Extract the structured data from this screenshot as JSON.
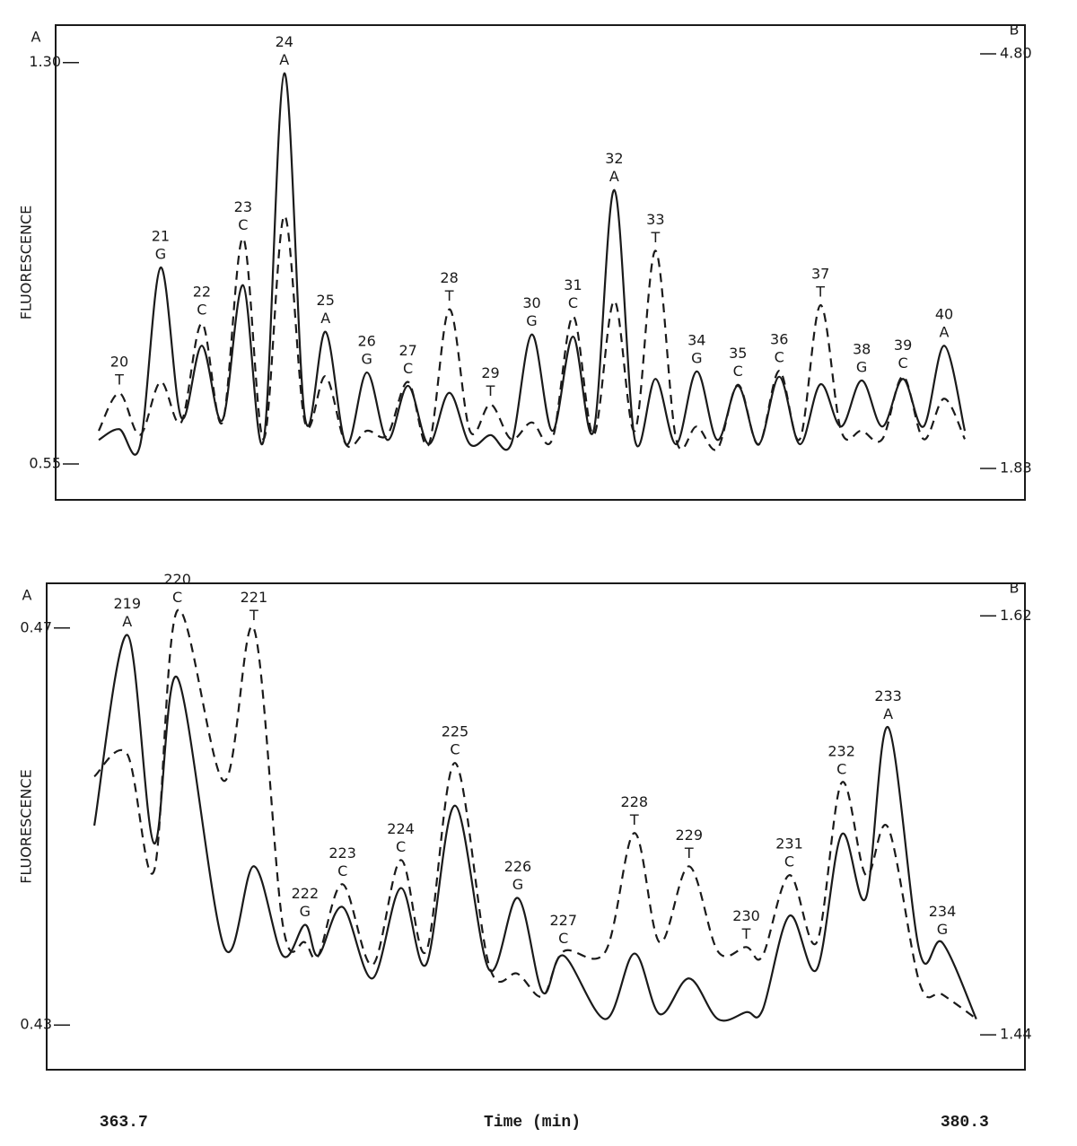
{
  "chart_data": [
    {
      "type": "line",
      "ylabel": "FLUORESCENCE",
      "y_axis_title": "A",
      "y2_axis_title": "B",
      "categories": [
        null,
        "20",
        null,
        "21",
        null,
        "22",
        null,
        "23",
        null,
        "24",
        null,
        "25",
        null,
        "26",
        null,
        "27",
        null,
        "28",
        null,
        "29",
        null,
        "30",
        null,
        "31",
        null,
        "32",
        null,
        "33",
        null,
        "34",
        null,
        "35",
        null,
        "36",
        null,
        "37",
        null,
        "38",
        null,
        "39",
        null,
        "40",
        null
      ],
      "bases": [
        null,
        "T",
        null,
        "G",
        null,
        "C",
        null,
        "C",
        null,
        "A",
        null,
        "A",
        null,
        "G",
        null,
        "C",
        null,
        "T",
        null,
        "T",
        null,
        "G",
        null,
        "C",
        null,
        "A",
        null,
        "T",
        null,
        "G",
        null,
        "C",
        null,
        "C",
        null,
        "T",
        null,
        "G",
        null,
        "C",
        null,
        "A",
        null
      ],
      "series": [
        {
          "axis": "y",
          "color": "#1a1a1a",
          "line_style": "solid",
          "values": [
            0.595,
            0.615,
            0.584,
            0.917,
            0.637,
            0.771,
            0.632,
            0.884,
            0.595,
            1.28,
            0.637,
            0.797,
            0.587,
            0.721,
            0.595,
            0.696,
            0.587,
            0.683,
            0.587,
            0.604,
            0.587,
            0.792,
            0.612,
            0.788,
            0.612,
            1.062,
            0.595,
            0.709,
            0.587,
            0.723,
            0.595,
            0.696,
            0.587,
            0.713,
            0.587,
            0.699,
            0.62,
            0.706,
            0.62,
            0.709,
            0.62,
            0.771,
            0.612
          ]
        },
        {
          "axis": "y2",
          "color": "#1a1a1a",
          "line_style": "dashed",
          "values": [
            2.1,
            2.37,
            2.07,
            2.45,
            2.16,
            2.87,
            2.16,
            3.48,
            2.04,
            3.64,
            2.16,
            2.49,
            2.0,
            2.1,
            2.07,
            2.45,
            2.0,
            2.97,
            2.1,
            2.29,
            2.04,
            2.16,
            2.04,
            2.92,
            2.07,
            3.03,
            2.1,
            3.39,
            2.04,
            2.13,
            1.97,
            2.43,
            2.0,
            2.53,
            2.04,
            3.0,
            2.1,
            2.1,
            2.04,
            2.49,
            2.04,
            2.33,
            2.04
          ]
        }
      ],
      "ylim": [
        0.483,
        1.37
      ],
      "yticks": [
        0.55,
        {
          "value": 1.3,
          "label": "1.30"
        }
      ],
      "y2lim": [
        1.605,
        5.006
      ],
      "y2ticks": [
        1.83,
        {
          "value": 4.8,
          "label": "4.80"
        }
      ]
    },
    {
      "type": "line",
      "ylabel": "FLUORESCENCE",
      "y_axis_title": "A",
      "y2_axis_title": "B",
      "xlabel": "Time (min)",
      "x": [
        363.12,
        363.77,
        364.3,
        364.76,
        365.68,
        366.27,
        366.84,
        367.28,
        367.54,
        368.02,
        368.61,
        369.17,
        369.67,
        370.24,
        370.91,
        371.48,
        371.97,
        372.38,
        373.21,
        373.78,
        374.28,
        374.86,
        375.43,
        375.99,
        376.31,
        376.84,
        377.38,
        377.87,
        378.35,
        378.79,
        379.41,
        379.86,
        380.53
      ],
      "peak_labels": [
        null,
        "219",
        null,
        "220",
        null,
        "221",
        null,
        "222",
        null,
        "223",
        null,
        "224",
        null,
        "225",
        null,
        "226",
        null,
        "227",
        null,
        "228",
        null,
        "229",
        null,
        "230",
        null,
        "231",
        null,
        "232",
        null,
        "233",
        null,
        "234",
        null
      ],
      "bases": [
        null,
        "A",
        null,
        "C",
        null,
        "T",
        null,
        "G",
        null,
        "C",
        null,
        "C",
        null,
        "C",
        null,
        "G",
        null,
        "C",
        null,
        "T",
        null,
        "T",
        null,
        "T",
        null,
        "C",
        null,
        "C",
        null,
        "A",
        null,
        "G",
        null
      ],
      "series": [
        {
          "axis": "y",
          "color": "#1a1a1a",
          "line_style": "solid",
          "values": [
            0.4501,
            0.4693,
            0.4483,
            0.465,
            0.4379,
            0.446,
            0.437,
            0.4401,
            0.437,
            0.4419,
            0.4347,
            0.4438,
            0.4361,
            0.4521,
            0.4356,
            0.4428,
            0.4333,
            0.437,
            0.4306,
            0.4372,
            0.4311,
            0.4347,
            0.4306,
            0.4313,
            0.4315,
            0.441,
            0.4356,
            0.4492,
            0.4428,
            0.46,
            0.4374,
            0.4383,
            0.4306
          ]
        },
        {
          "axis": "y2",
          "color": "#1a1a1a",
          "line_style": "dashed",
          "values": [
            1.551,
            1.5606,
            1.5105,
            1.6223,
            1.5491,
            1.6146,
            1.4874,
            1.4797,
            1.4739,
            1.5047,
            1.47,
            1.5151,
            1.4758,
            1.5568,
            1.47,
            1.4662,
            1.4565,
            1.4758,
            1.4758,
            1.5267,
            1.4797,
            1.5124,
            1.4758,
            1.4777,
            1.4739,
            1.5086,
            1.4797,
            1.5483,
            1.5086,
            1.529,
            1.4623,
            1.4573,
            1.4469
          ]
        }
      ],
      "xlim": [
        362.18,
        381.49
      ],
      "xticks": [
        363.7,
        380.3
      ],
      "ylim": [
        0.4255,
        0.4745
      ],
      "yticks": [
        0.43,
        0.47
      ],
      "y2lim": [
        1.425,
        1.634
      ],
      "y2ticks": [
        1.44,
        1.62
      ]
    }
  ]
}
